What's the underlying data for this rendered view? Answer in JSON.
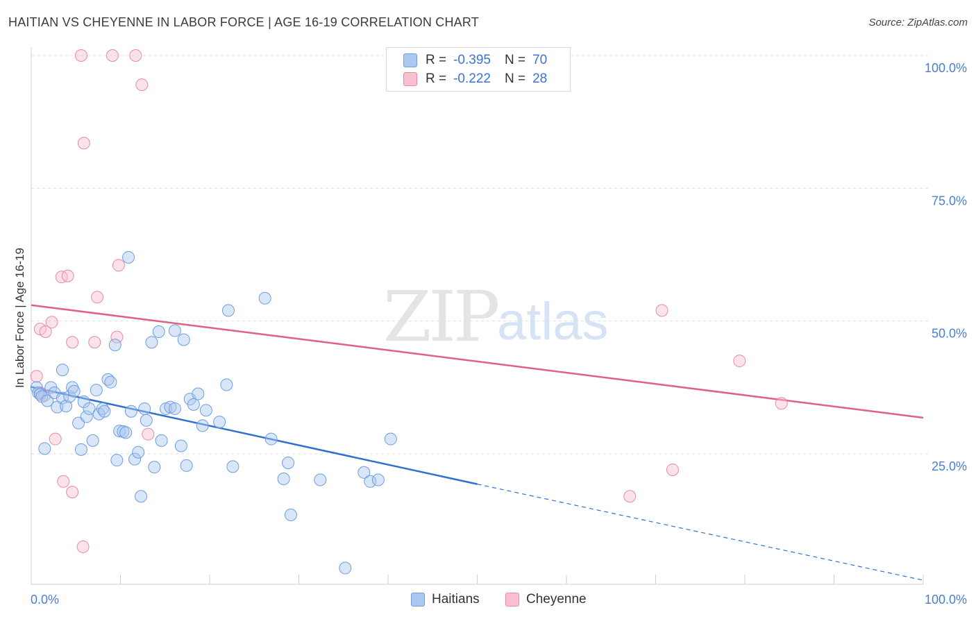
{
  "header": {
    "title": "HAITIAN VS CHEYENNE IN LABOR FORCE | AGE 16-19 CORRELATION CHART",
    "source": "Source: ZipAtlas.com"
  },
  "watermark": {
    "zip": "ZIP",
    "atlas": "atlas"
  },
  "legend": {
    "r_label": "R =",
    "n_label": "N =",
    "rows": [
      {
        "r": "-0.395",
        "n": "70",
        "color": "#aac8f0",
        "border": "#6d9de0"
      },
      {
        "r": "-0.222",
        "n": "28",
        "color": "#f8c0d0",
        "border": "#e888a8"
      }
    ]
  },
  "bottom_legend": {
    "haitians": "Haitians",
    "cheyenne": "Cheyenne"
  },
  "chart_data": {
    "type": "scatter",
    "title": "HAITIAN VS CHEYENNE IN LABOR FORCE | AGE 16-19 CORRELATION CHART",
    "xlabel": "",
    "ylabel": "In Labor Force | Age 16-19",
    "xlim": [
      0,
      100
    ],
    "ylim": [
      0,
      102
    ],
    "x_tick_labels": [
      "0.0%",
      "100.0%"
    ],
    "y_ticks": [
      25,
      50,
      75,
      100
    ],
    "y_tick_labels": [
      "25.0%",
      "50.0%",
      "75.0%",
      "100.0%"
    ],
    "grid": true,
    "colors": {
      "haitians": "#6d9de0",
      "haitians_fill": "rgba(170,200,240,0.45)",
      "cheyenne": "#e888a8",
      "cheyenne_fill": "rgba(248,192,208,0.45)",
      "haitian_line": "#2f6fd0",
      "cheyenne_line": "#e0608a"
    },
    "series": [
      {
        "name": "Haitians",
        "points": [
          [
            0.6,
            37.5
          ],
          [
            0.8,
            36.5
          ],
          [
            1.0,
            36.2
          ],
          [
            1.2,
            35.8
          ],
          [
            1.5,
            26.0
          ],
          [
            1.8,
            35.0
          ],
          [
            2.2,
            37.5
          ],
          [
            2.6,
            36.5
          ],
          [
            2.9,
            33.8
          ],
          [
            3.5,
            35.5
          ],
          [
            3.5,
            40.8
          ],
          [
            3.9,
            34.0
          ],
          [
            4.3,
            35.8
          ],
          [
            4.6,
            37.5
          ],
          [
            4.8,
            36.8
          ],
          [
            5.3,
            30.8
          ],
          [
            5.6,
            25.8
          ],
          [
            5.9,
            34.8
          ],
          [
            6.2,
            32.0
          ],
          [
            6.5,
            33.5
          ],
          [
            6.9,
            27.5
          ],
          [
            7.3,
            37.0
          ],
          [
            7.6,
            32.5
          ],
          [
            8.0,
            33.5
          ],
          [
            8.2,
            33.0
          ],
          [
            8.6,
            39.0
          ],
          [
            8.9,
            38.5
          ],
          [
            9.4,
            45.5
          ],
          [
            9.6,
            23.8
          ],
          [
            9.9,
            29.3
          ],
          [
            10.3,
            29.2
          ],
          [
            10.6,
            29.0
          ],
          [
            10.9,
            62.0
          ],
          [
            11.2,
            33.0
          ],
          [
            11.6,
            24.0
          ],
          [
            12.0,
            25.3
          ],
          [
            12.3,
            17.0
          ],
          [
            12.7,
            33.5
          ],
          [
            12.9,
            31.3
          ],
          [
            13.5,
            46.0
          ],
          [
            13.8,
            22.5
          ],
          [
            14.3,
            48.0
          ],
          [
            14.6,
            27.5
          ],
          [
            15.1,
            33.5
          ],
          [
            15.6,
            33.8
          ],
          [
            16.1,
            48.2
          ],
          [
            16.1,
            33.5
          ],
          [
            16.8,
            26.5
          ],
          [
            17.1,
            46.5
          ],
          [
            17.4,
            22.8
          ],
          [
            17.8,
            35.3
          ],
          [
            18.2,
            34.3
          ],
          [
            18.7,
            36.3
          ],
          [
            19.2,
            30.3
          ],
          [
            19.6,
            33.2
          ],
          [
            21.1,
            31.0
          ],
          [
            21.9,
            38.0
          ],
          [
            22.1,
            52.0
          ],
          [
            22.6,
            22.6
          ],
          [
            26.2,
            54.3
          ],
          [
            26.9,
            27.8
          ],
          [
            28.3,
            20.3
          ],
          [
            28.8,
            23.3
          ],
          [
            29.1,
            13.5
          ],
          [
            32.4,
            20.1
          ],
          [
            35.2,
            3.5
          ],
          [
            37.3,
            21.5
          ],
          [
            38.0,
            19.8
          ],
          [
            38.9,
            20.1
          ],
          [
            40.3,
            27.8
          ]
        ]
      },
      {
        "name": "Cheyenne",
        "points": [
          [
            0.6,
            39.6
          ],
          [
            1.0,
            36.5
          ],
          [
            1.0,
            48.5
          ],
          [
            1.6,
            48.0
          ],
          [
            2.3,
            49.8
          ],
          [
            2.7,
            27.8
          ],
          [
            3.4,
            58.3
          ],
          [
            3.6,
            19.8
          ],
          [
            4.1,
            58.5
          ],
          [
            4.6,
            17.8
          ],
          [
            4.6,
            46.0
          ],
          [
            5.6,
            100.0
          ],
          [
            5.8,
            7.5
          ],
          [
            5.9,
            83.5
          ],
          [
            7.1,
            46.0
          ],
          [
            7.4,
            54.5
          ],
          [
            9.1,
            100.0
          ],
          [
            9.6,
            47.0
          ],
          [
            9.8,
            60.5
          ],
          [
            11.7,
            100.0
          ],
          [
            12.4,
            94.5
          ],
          [
            13.1,
            28.7
          ],
          [
            67.1,
            17.0
          ],
          [
            70.7,
            52.0
          ],
          [
            71.9,
            22.0
          ],
          [
            79.4,
            42.5
          ],
          [
            84.1,
            34.5
          ],
          [
            1.5,
            36.0
          ]
        ]
      }
    ],
    "trendlines": [
      {
        "name": "Haitians",
        "solid": [
          [
            0,
            37.6
          ],
          [
            50,
            19.3
          ]
        ],
        "dashed": [
          [
            50,
            19.3
          ],
          [
            100,
            1.2
          ]
        ]
      },
      {
        "name": "Cheyenne",
        "solid": [
          [
            0,
            53.0
          ],
          [
            100,
            31.8
          ]
        ]
      }
    ]
  }
}
